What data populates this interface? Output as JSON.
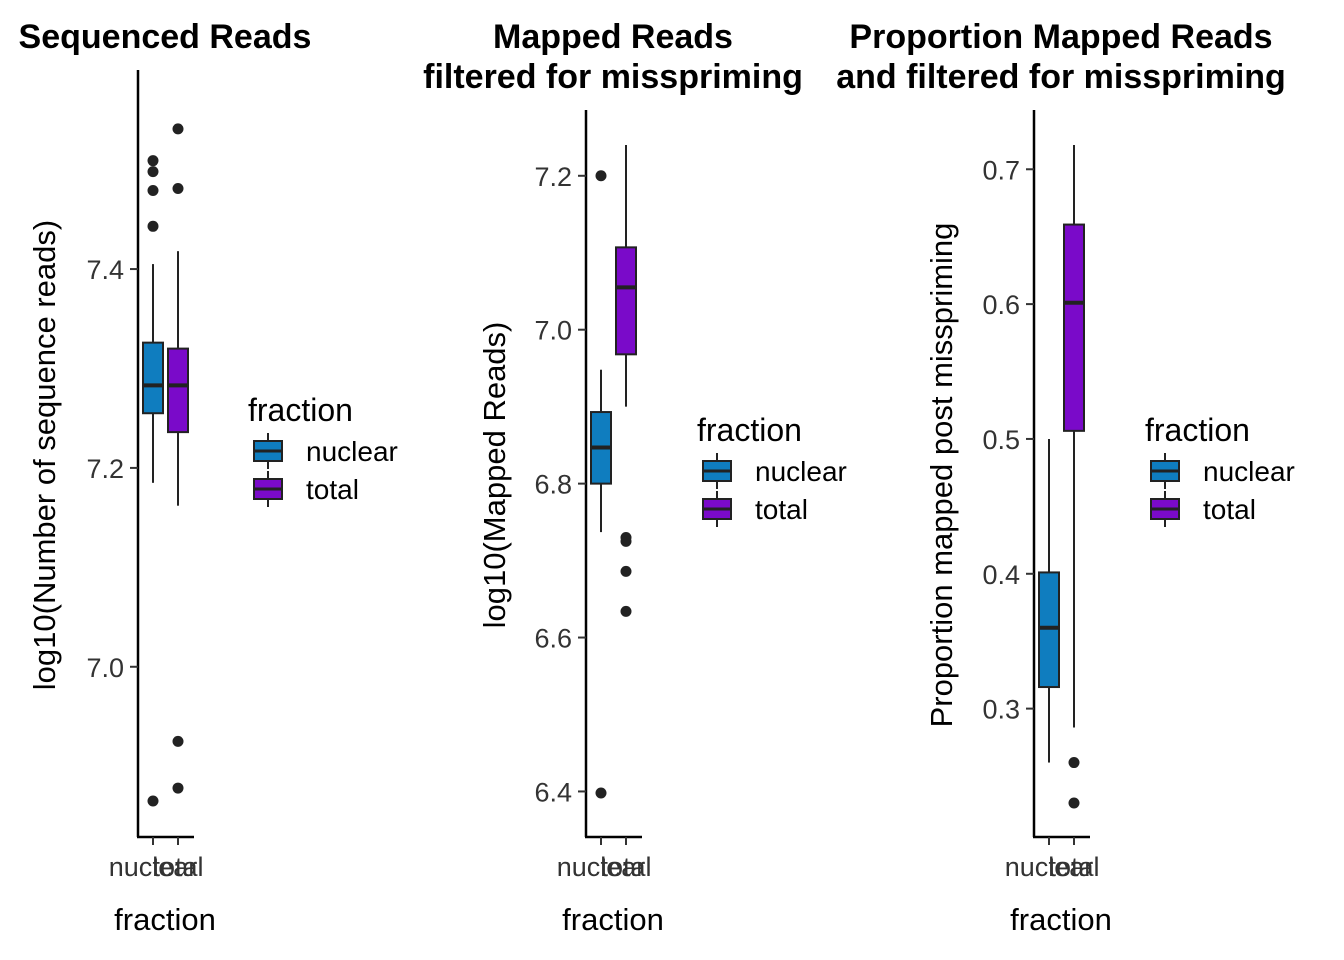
{
  "colors": {
    "nuclear": "#0f7dbf",
    "total": "#7a0ac9",
    "line": "#222222"
  },
  "legend": {
    "title": "fraction",
    "entries": [
      {
        "label": "nuclear",
        "color": "#0f7dbf"
      },
      {
        "label": "total",
        "color": "#7a0ac9"
      }
    ]
  },
  "chart_data": [
    {
      "type": "box",
      "title": [
        "Sequenced Reads"
      ],
      "xlabel": "fraction",
      "ylabel": "log10(Number of sequence reads)",
      "categories": [
        "nuclear",
        "total"
      ],
      "yticks": [
        7.0,
        7.2,
        7.4
      ],
      "ytick_labels": [
        "7.0",
        "7.2",
        "7.4"
      ],
      "ylim": [
        6.865,
        7.565
      ],
      "boxes": [
        {
          "category": "nuclear",
          "whisker_low": 7.185,
          "q1": 7.255,
          "median": 7.283,
          "q3": 7.326,
          "whisker_high": 7.405,
          "outliers": [
            6.865,
            7.443,
            7.479,
            7.498,
            7.509
          ]
        },
        {
          "category": "total",
          "whisker_low": 7.162,
          "q1": 7.236,
          "median": 7.283,
          "q3": 7.32,
          "whisker_high": 7.418,
          "outliers": [
            6.878,
            6.925,
            7.481,
            7.541
          ]
        }
      ]
    },
    {
      "type": "box",
      "title": [
        "Mapped Reads",
        "filtered for misspriming"
      ],
      "xlabel": "fraction",
      "ylabel": "log10(Mapped Reads)",
      "categories": [
        "nuclear",
        "total"
      ],
      "yticks": [
        6.4,
        6.6,
        6.8,
        7.0,
        7.2
      ],
      "ytick_labels": [
        "6.4",
        "6.6",
        "6.8",
        "7.0",
        "7.2"
      ],
      "ylim": [
        6.385,
        7.24
      ],
      "boxes": [
        {
          "category": "nuclear",
          "whisker_low": 6.737,
          "q1": 6.8,
          "median": 6.847,
          "q3": 6.893,
          "whisker_high": 6.948,
          "outliers": [
            6.398,
            7.2
          ]
        },
        {
          "category": "total",
          "whisker_low": 6.9,
          "q1": 6.968,
          "median": 7.055,
          "q3": 7.107,
          "whisker_high": 7.24,
          "outliers": [
            6.634,
            6.686,
            6.725,
            6.73
          ]
        }
      ]
    },
    {
      "type": "box",
      "title": [
        "Proportion Mapped Reads",
        "and filtered for misspriming"
      ],
      "xlabel": "fraction",
      "ylabel": "Proportion mapped post misspriming",
      "categories": [
        "nuclear",
        "total"
      ],
      "yticks": [
        0.3,
        0.4,
        0.5,
        0.6,
        0.7
      ],
      "ytick_labels": [
        "0.3",
        "0.4",
        "0.5",
        "0.6",
        "0.7"
      ],
      "ylim": [
        0.23,
        0.718
      ],
      "boxes": [
        {
          "category": "nuclear",
          "whisker_low": 0.26,
          "q1": 0.316,
          "median": 0.36,
          "q3": 0.401,
          "whisker_high": 0.5,
          "outliers": []
        },
        {
          "category": "total",
          "whisker_low": 0.286,
          "q1": 0.506,
          "median": 0.601,
          "q3": 0.659,
          "whisker_high": 0.718,
          "outliers": [
            0.23,
            0.26
          ]
        }
      ]
    }
  ]
}
